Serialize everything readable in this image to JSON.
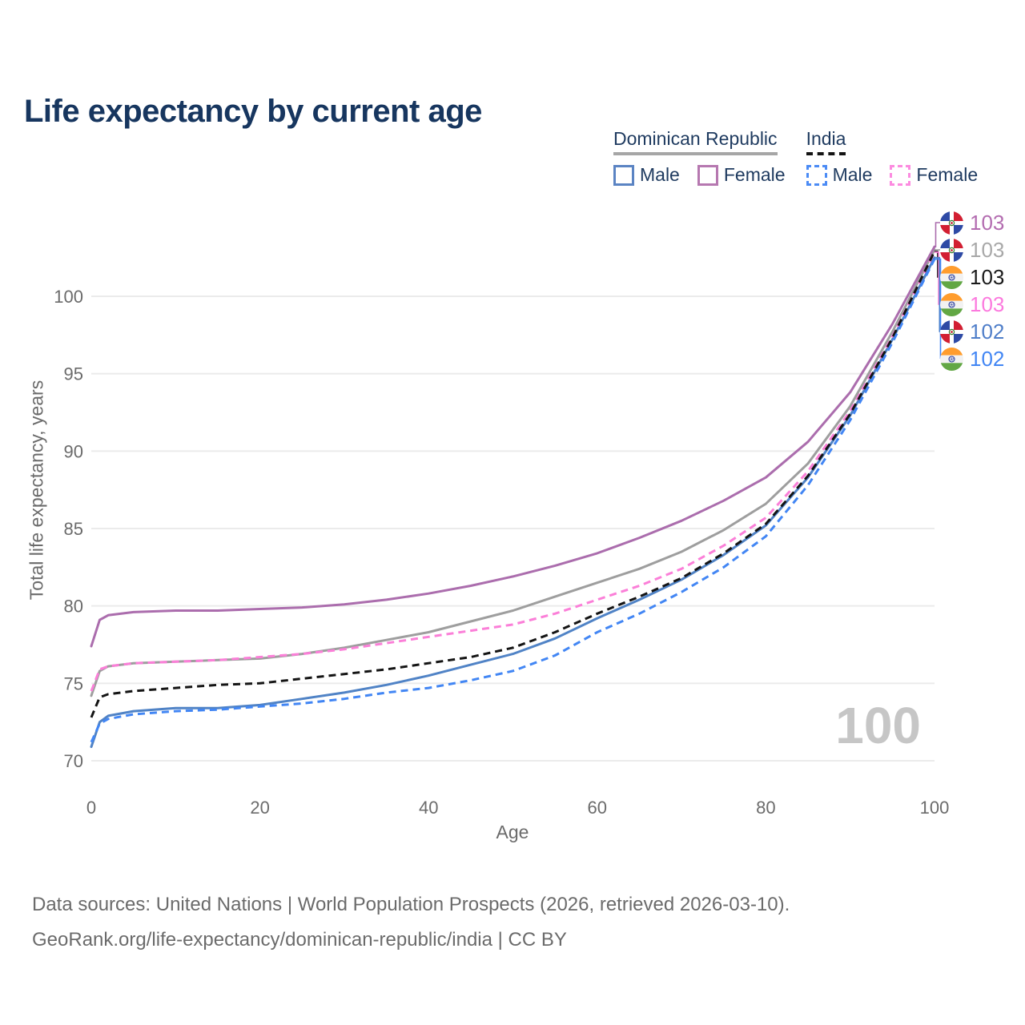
{
  "title": "Life expectancy by current age",
  "legend": {
    "groups": [
      {
        "label": "Dominican Republic",
        "line_style": "solid",
        "line_color": "#a6a6a6",
        "items": [
          {
            "label": "Male",
            "color": "#5b84c3",
            "style": "solid"
          },
          {
            "label": "Female",
            "color": "#b678b0",
            "style": "solid"
          }
        ]
      },
      {
        "label": "India",
        "line_style": "dashed",
        "line_color": "#141414",
        "items": [
          {
            "label": "Male",
            "color": "#4b8bf5",
            "style": "dashed"
          },
          {
            "label": "Female",
            "color": "#fc8be0",
            "style": "dashed"
          }
        ]
      }
    ]
  },
  "right_labels": [
    {
      "value": "103",
      "color": "#b36cb0",
      "flag": "dominican-republic",
      "series": "Dominican Republic Female"
    },
    {
      "value": "103",
      "color": "#a8a8a8",
      "flag": "dominican-republic",
      "series": "Dominican Republic Both sexes"
    },
    {
      "value": "103",
      "color": "#1a1a1a",
      "flag": "india",
      "series": "India Both sexes"
    },
    {
      "value": "103",
      "color": "#fc7ade",
      "flag": "india",
      "series": "India Female"
    },
    {
      "value": "102",
      "color": "#4f7ec9",
      "flag": "dominican-republic",
      "series": "Dominican Republic Male"
    },
    {
      "value": "102",
      "color": "#4286f4",
      "flag": "india",
      "series": "India Male"
    }
  ],
  "watermark": "100",
  "footer": {
    "line1": "Data sources: United Nations | World Population Prospects (2026, retrieved 2026-03-10).",
    "line2": "GeoRank.org/life-expectancy/dominican-republic/india | CC BY"
  },
  "chart_data": {
    "type": "line",
    "title": "Life expectancy by current age",
    "xlabel": "Age",
    "ylabel": "Total life expectancy, years",
    "x_ticks": [
      0,
      20,
      40,
      60,
      80,
      100
    ],
    "y_ticks": [
      70,
      75,
      80,
      85,
      90,
      95,
      100
    ],
    "xlim": [
      0,
      100
    ],
    "ylim": [
      69,
      104
    ],
    "grid": "horizontal-only",
    "legend_position": "top-right",
    "x": [
      0,
      1,
      2,
      5,
      10,
      15,
      20,
      25,
      30,
      35,
      40,
      45,
      50,
      55,
      60,
      65,
      70,
      75,
      80,
      85,
      90,
      95,
      100
    ],
    "series": [
      {
        "name": "Dominican Republic Female",
        "country": "Dominican Republic",
        "sex": "Female",
        "style": "solid",
        "color": "#ab6dad",
        "z": 2,
        "end_label": "103",
        "values": [
          77.4,
          79.1,
          79.4,
          79.6,
          79.7,
          79.7,
          79.8,
          79.9,
          80.1,
          80.4,
          80.8,
          81.3,
          81.9,
          82.6,
          83.4,
          84.4,
          85.5,
          86.8,
          88.3,
          90.6,
          93.8,
          98.2,
          103.2
        ]
      },
      {
        "name": "Dominican Republic Both sexes",
        "country": "Dominican Republic",
        "sex": "Both",
        "style": "solid",
        "color": "#9e9e9e",
        "z": 1,
        "end_label": "103",
        "values": [
          74.2,
          75.8,
          76.1,
          76.3,
          76.4,
          76.5,
          76.6,
          76.9,
          77.3,
          77.8,
          78.3,
          79.0,
          79.7,
          80.6,
          81.5,
          82.4,
          83.5,
          84.9,
          86.6,
          89.2,
          92.9,
          97.7,
          103.0
        ]
      },
      {
        "name": "India Both sexes",
        "country": "India",
        "sex": "Both",
        "style": "dashed",
        "color": "#141414",
        "z": 5,
        "end_label": "103",
        "values": [
          72.8,
          74.1,
          74.3,
          74.5,
          74.7,
          74.9,
          75.0,
          75.3,
          75.6,
          75.9,
          76.3,
          76.7,
          77.3,
          78.3,
          79.5,
          80.6,
          81.8,
          83.4,
          85.3,
          88.4,
          92.4,
          97.3,
          102.9
        ]
      },
      {
        "name": "India Female",
        "country": "India",
        "sex": "Female",
        "style": "dashed",
        "color": "#fb7fd8",
        "z": 4,
        "end_label": "103",
        "values": [
          74.5,
          75.9,
          76.1,
          76.3,
          76.4,
          76.5,
          76.7,
          76.9,
          77.2,
          77.6,
          78.0,
          78.4,
          78.8,
          79.5,
          80.4,
          81.3,
          82.4,
          83.9,
          85.7,
          88.7,
          92.6,
          97.4,
          102.85
        ]
      },
      {
        "name": "Dominican Republic Male",
        "country": "Dominican Republic",
        "sex": "Male",
        "style": "solid",
        "color": "#5083c6",
        "z": 3,
        "end_label": "102",
        "values": [
          70.9,
          72.5,
          72.9,
          73.2,
          73.4,
          73.4,
          73.6,
          74.0,
          74.4,
          74.9,
          75.5,
          76.2,
          76.9,
          77.9,
          79.2,
          80.4,
          81.7,
          83.3,
          85.2,
          88.3,
          92.3,
          97.2,
          102.5
        ]
      },
      {
        "name": "India Male",
        "country": "India",
        "sex": "Male",
        "style": "dashed",
        "color": "#4286f4",
        "z": 6,
        "end_label": "102",
        "values": [
          71.2,
          72.4,
          72.7,
          73.0,
          73.2,
          73.3,
          73.5,
          73.7,
          74.0,
          74.4,
          74.7,
          75.2,
          75.8,
          76.8,
          78.3,
          79.5,
          80.9,
          82.5,
          84.5,
          87.8,
          92.0,
          97.0,
          102.4
        ]
      }
    ]
  }
}
